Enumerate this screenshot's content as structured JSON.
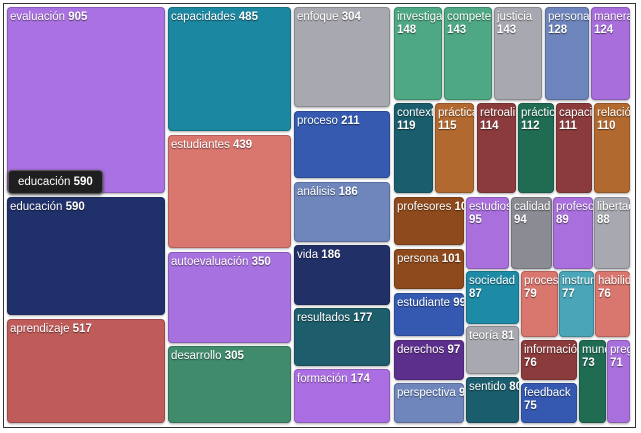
{
  "chart_data": {
    "type": "treemap",
    "title": "",
    "items": [
      {
        "label": "evaluación",
        "value": 905,
        "color": "#a971e1"
      },
      {
        "label": "educación",
        "value": 590,
        "color": "#20306b"
      },
      {
        "label": "aprendizaje",
        "value": 517,
        "color": "#bf5b59"
      },
      {
        "label": "capacidades",
        "value": 485,
        "color": "#1c87a0"
      },
      {
        "label": "estudiantes",
        "value": 439,
        "color": "#d9766e"
      },
      {
        "label": "autoevaluación",
        "value": 350,
        "color": "#a771df"
      },
      {
        "label": "desarrollo",
        "value": 305,
        "color": "#3f8b6c"
      },
      {
        "label": "enfoque",
        "value": 304,
        "color": "#a8a8b0"
      },
      {
        "label": "proceso",
        "value": 211,
        "color": "#355ab0"
      },
      {
        "label": "análisis",
        "value": 186,
        "color": "#6e86bc"
      },
      {
        "label": "vida",
        "value": 186,
        "color": "#223068"
      },
      {
        "label": "resultados",
        "value": 177,
        "color": "#1d5d6c"
      },
      {
        "label": "formación",
        "value": 174,
        "color": "#ab6ee2"
      },
      {
        "label": "investigación",
        "value": 148,
        "color": "#4ea883"
      },
      {
        "label": "competencias",
        "value": 143,
        "color": "#4ea883"
      },
      {
        "label": "justicia",
        "value": 143,
        "color": "#a8a8b0"
      },
      {
        "label": "personas",
        "value": 128,
        "color": "#6e84bc"
      },
      {
        "label": "manera",
        "value": 124,
        "color": "#a86edc"
      },
      {
        "label": "contexto",
        "value": 119,
        "color": "#1a5d6c"
      },
      {
        "label": "prácticas",
        "value": 115,
        "color": "#b2692f"
      },
      {
        "label": "retroalimentación",
        "value": 114,
        "color": "#8b3b3b"
      },
      {
        "label": "práctica",
        "value": 112,
        "color": "#1f6c53"
      },
      {
        "label": "capacidad",
        "value": 111,
        "color": "#8b3b3b"
      },
      {
        "label": "relación",
        "value": 110,
        "color": "#b2692f"
      },
      {
        "label": "profesores",
        "value": 109,
        "color": "#8e4a1c"
      },
      {
        "label": "estudios",
        "value": 95,
        "color": "#a86fdd"
      },
      {
        "label": "calidad",
        "value": 94,
        "color": "#8b8b94"
      },
      {
        "label": "profesor",
        "value": 89,
        "color": "#a86fdd"
      },
      {
        "label": "libertad",
        "value": 88,
        "color": "#a8a8b0"
      },
      {
        "label": "persona",
        "value": 101,
        "color": "#8e4a1c"
      },
      {
        "label": "estudiante",
        "value": 99,
        "color": "#3559b0"
      },
      {
        "label": "sociedad",
        "value": 87,
        "color": "#1d8aa6"
      },
      {
        "label": "procesos",
        "value": 79,
        "color": "#d9766e"
      },
      {
        "label": "instrumentos",
        "value": 77,
        "color": "#4aa5b8"
      },
      {
        "label": "habilidades",
        "value": 76,
        "color": "#d9766e"
      },
      {
        "label": "teoría",
        "value": 81,
        "color": "#a8a8b0"
      },
      {
        "label": "derechos",
        "value": 97,
        "color": "#5d2f8c"
      },
      {
        "label": "información",
        "value": 76,
        "color": "#8b3b3b"
      },
      {
        "label": "mundo",
        "value": 73,
        "color": "#1f6c53"
      },
      {
        "label": "preguntas",
        "value": 71,
        "color": "#a86fdd"
      },
      {
        "label": "perspectiva",
        "value": 97,
        "color": "#6e86bc"
      },
      {
        "label": "sentido",
        "value": 80,
        "color": "#1a5d6c"
      },
      {
        "label": "feedback",
        "value": 75,
        "color": "#3559b0"
      }
    ]
  },
  "tooltip": {
    "label": "educación",
    "value": "590"
  }
}
